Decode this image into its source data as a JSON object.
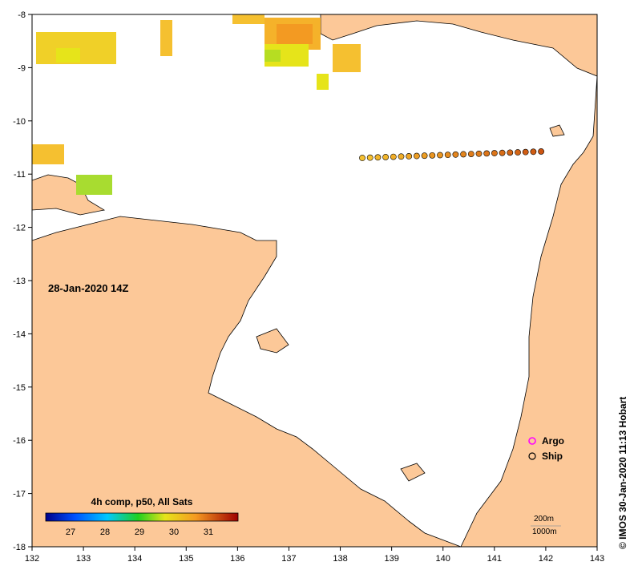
{
  "map": {
    "timestamp_label": "28-Jan-2020 14Z",
    "credit": "© IMOS 30-Jan-2020 11:13 Hobart",
    "x_ticks": [
      "132",
      "133",
      "134",
      "135",
      "136",
      "137",
      "138",
      "139",
      "140",
      "141",
      "142",
      "143"
    ],
    "y_ticks": [
      "-8",
      "-9",
      "-10",
      "-11",
      "-12",
      "-13",
      "-14",
      "-15",
      "-16",
      "-17",
      "-18"
    ],
    "colorbar": {
      "title": "4h comp, p50, All Sats",
      "ticks": [
        "27",
        "28",
        "29",
        "30",
        "31"
      ]
    },
    "legend": {
      "argo_label": "Argo",
      "ship_label": "Ship",
      "argo_color": "#ff00ff",
      "ship_color": "#000000"
    },
    "contour_labels": {
      "c200": "200m",
      "c1000": "1000m"
    },
    "colors": {
      "land": "#fcc898",
      "water": "#ffffff"
    }
  }
}
